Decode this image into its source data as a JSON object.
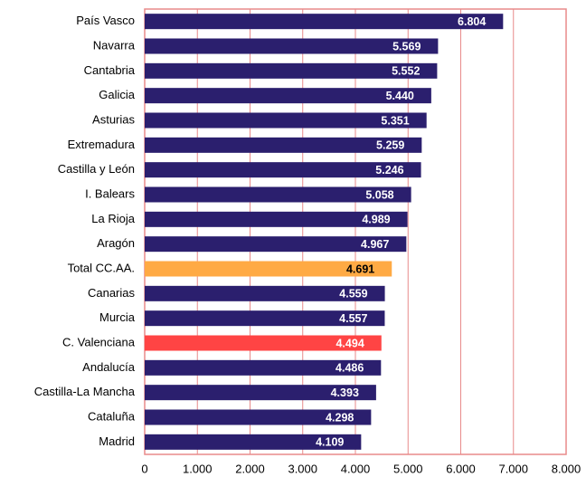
{
  "chart_data": {
    "type": "barh",
    "categories": [
      "País Vasco",
      "Navarra",
      "Cantabria",
      "Galicia",
      "Asturias",
      "Extremadura",
      "Castilla y León",
      "I. Balears",
      "La Rioja",
      "Aragón",
      "Total CC.AA.",
      "Canarias",
      "Murcia",
      "C. Valenciana",
      "Andalucía",
      "Castilla-La Mancha",
      "Cataluña",
      "Madrid"
    ],
    "values": [
      6804,
      5569,
      5552,
      5440,
      5351,
      5259,
      5246,
      5058,
      4989,
      4967,
      4691,
      4559,
      4557,
      4494,
      4486,
      4393,
      4298,
      4109
    ],
    "value_labels": [
      "6.804",
      "5.569",
      "5.552",
      "5.440",
      "5.351",
      "5.259",
      "5.246",
      "5.058",
      "4.989",
      "4.967",
      "4.691",
      "4.559",
      "4.557",
      "4.494",
      "4.486",
      "4.393",
      "4.298",
      "4.109"
    ],
    "colors": [
      "#2b1f6e",
      "#2b1f6e",
      "#2b1f6e",
      "#2b1f6e",
      "#2b1f6e",
      "#2b1f6e",
      "#2b1f6e",
      "#2b1f6e",
      "#2b1f6e",
      "#2b1f6e",
      "#ffaa44",
      "#2b1f6e",
      "#2b1f6e",
      "#ff4444",
      "#2b1f6e",
      "#2b1f6e",
      "#2b1f6e",
      "#2b1f6e"
    ],
    "label_colors": [
      "#ffffff",
      "#ffffff",
      "#ffffff",
      "#ffffff",
      "#ffffff",
      "#ffffff",
      "#ffffff",
      "#ffffff",
      "#ffffff",
      "#ffffff",
      "#000000",
      "#ffffff",
      "#ffffff",
      "#ffffff",
      "#ffffff",
      "#ffffff",
      "#ffffff",
      "#ffffff"
    ],
    "xlim": [
      0,
      8000
    ],
    "xticks": [
      0,
      {
        "value": 1000,
        "label": "1.000"
      },
      {
        "value": 2000,
        "label": "2.000"
      },
      {
        "value": 3000,
        "label": "3.000"
      },
      {
        "value": 4000,
        "label": "4.000"
      },
      {
        "value": 5000,
        "label": "5.000"
      },
      {
        "value": 6000,
        "label": "6.000"
      },
      {
        "value": 7000,
        "label": "7.000"
      },
      {
        "value": 8000,
        "label": "8.000"
      }
    ],
    "grid": true
  }
}
